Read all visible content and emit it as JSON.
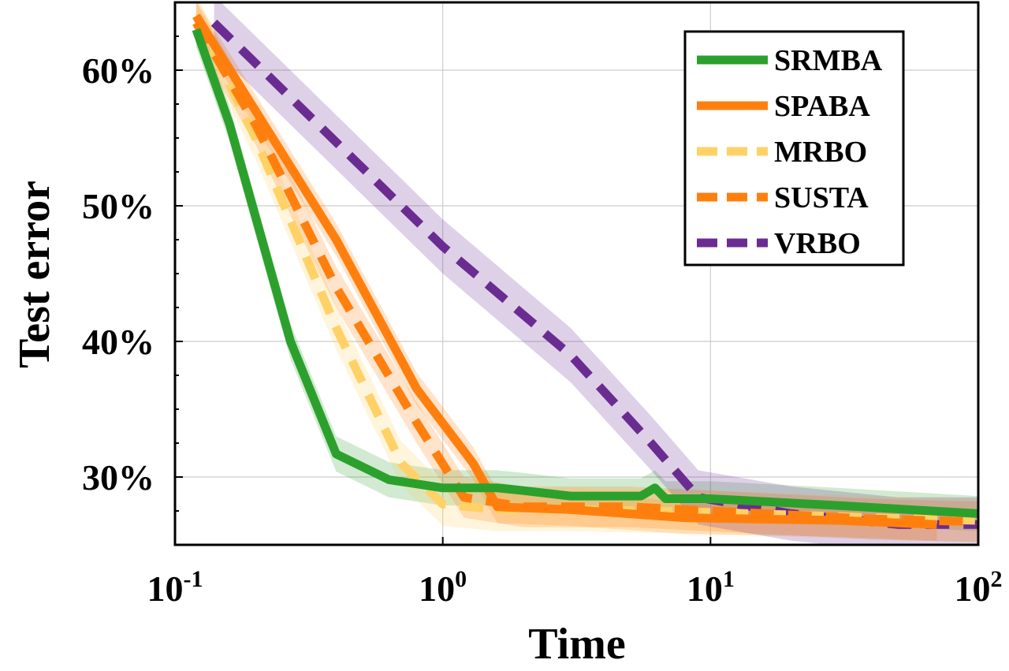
{
  "chart_data": {
    "type": "line",
    "xlabel": "Time",
    "ylabel": "Test error",
    "x_scale": "log",
    "xlim": [
      0.1,
      100
    ],
    "ylim": [
      25,
      65
    ],
    "grid": true,
    "legend_position": "top-right",
    "x_ticks": [
      {
        "value": 0.1,
        "base": "10",
        "exp": "-1"
      },
      {
        "value": 1,
        "base": "10",
        "exp": "0"
      },
      {
        "value": 10,
        "base": "10",
        "exp": "1"
      },
      {
        "value": 100,
        "base": "10",
        "exp": "2"
      }
    ],
    "y_ticks": [
      {
        "value": 30,
        "label": "30%"
      },
      {
        "value": 40,
        "label": "40%"
      },
      {
        "value": 50,
        "label": "50%"
      },
      {
        "value": 60,
        "label": "60%"
      }
    ],
    "series": [
      {
        "name": "SRMBA",
        "color": "#2ca02c",
        "dash": "solid",
        "x": [
          0.12,
          0.16,
          0.27,
          0.4,
          0.63,
          1.0,
          1.6,
          2.0,
          3.0,
          5.5,
          6.2,
          6.8,
          10,
          30,
          100
        ],
        "y": [
          63.0,
          56.0,
          40.0,
          31.7,
          29.8,
          29.2,
          29.2,
          29.0,
          28.6,
          28.6,
          29.2,
          28.4,
          28.4,
          27.9,
          27.3
        ],
        "band": 1.3
      },
      {
        "name": "SPABA",
        "color": "#ff7f0e",
        "dash": "solid",
        "x": [
          0.12,
          0.2,
          0.4,
          0.8,
          1.3,
          1.6,
          3.0,
          8.0,
          30,
          70
        ],
        "y": [
          64.0,
          57.0,
          47.5,
          36.5,
          31.0,
          27.8,
          27.6,
          27.0,
          26.8,
          26.5
        ],
        "band": 1.2
      },
      {
        "name": "MRBO",
        "color": "#ffd166",
        "dash": "dashed",
        "x": [
          0.12,
          0.2,
          0.4,
          0.7,
          1.0,
          1.6,
          3.0,
          10,
          40,
          100
        ],
        "y": [
          64.0,
          55.0,
          41.0,
          31.0,
          28.0,
          27.6,
          27.6,
          27.4,
          27.0,
          26.8
        ],
        "band": 1.6
      },
      {
        "name": "SUSTA",
        "color": "#ff7f0e",
        "dash": "dashed",
        "x": [
          0.12,
          0.2,
          0.4,
          0.8,
          1.2,
          2.0,
          5.0,
          10,
          40,
          100
        ],
        "y": [
          63.5,
          56.0,
          44.0,
          34.0,
          28.5,
          27.8,
          27.8,
          27.5,
          26.9,
          26.7
        ],
        "band": 1.5
      },
      {
        "name": "VRBO",
        "color": "#6a2c91",
        "dash": "dashed",
        "x": [
          0.14,
          1.0,
          3.0,
          6.0,
          9.0,
          20,
          50,
          100
        ],
        "y": [
          63.5,
          47.0,
          39.0,
          32.5,
          28.5,
          27.3,
          26.5,
          26.5
        ],
        "band": 2.0
      }
    ]
  }
}
